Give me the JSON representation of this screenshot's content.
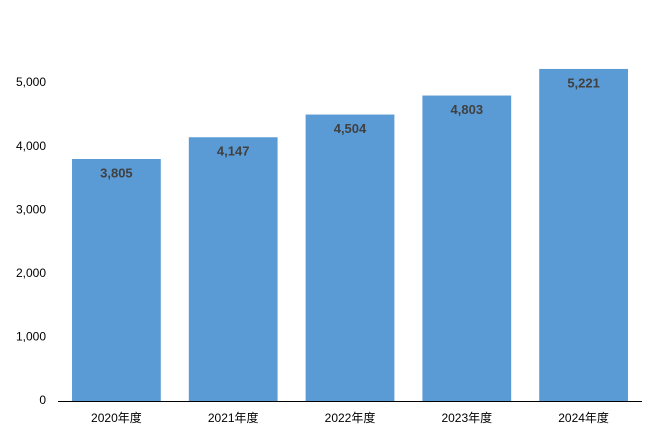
{
  "chart_data": {
    "type": "bar",
    "categories": [
      "2020年度",
      "2021年度",
      "2022年度",
      "2023年度",
      "2024年度"
    ],
    "values": [
      3805,
      4147,
      4504,
      4803,
      5221
    ],
    "value_labels": [
      "3,805",
      "4,147",
      "4,504",
      "4,803",
      "5,221"
    ],
    "color": "#5b9bd5",
    "ylim": [
      0,
      6000
    ],
    "yticks": [
      0,
      {
        "value": 1000,
        "label": "1,000"
      },
      {
        "value": 2000,
        "label": "2,000"
      },
      {
        "value": 3000,
        "label": "3,000"
      },
      {
        "value": 4000,
        "label": "4,000"
      },
      {
        "value": 5000,
        "label": "5,000"
      }
    ],
    "grid": false
  }
}
